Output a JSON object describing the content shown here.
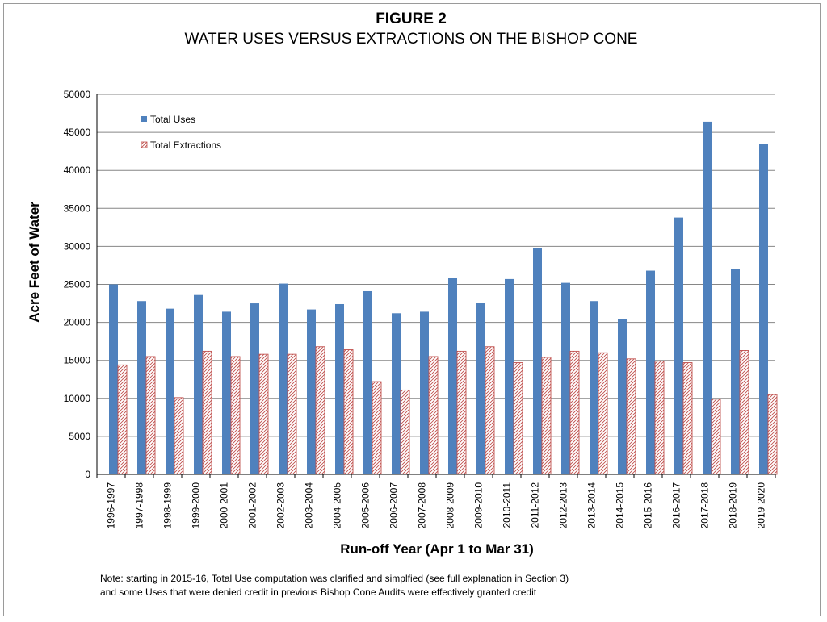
{
  "figure": {
    "heading": "FIGURE 2",
    "subheading": "WATER USES VERSUS EXTRACTIONS ON THE BISHOP CONE",
    "note_line1": "Note: starting in 2015-16,  Total Use computation was clarified and simplfied (see full explanation in Section 3)",
    "note_line2": "and some Uses that were  denied credit in previous Bishop Cone Audits were effectively granted credit"
  },
  "colors": {
    "uses": "#4f81bd",
    "extractions_stroke": "#c0504d",
    "extractions_hatch": "#c0504d",
    "grid": "#868686",
    "axis": "#000000"
  },
  "chart_data": {
    "type": "bar",
    "xlabel": "Run-off Year (Apr 1 to Mar 31)",
    "ylabel": "Acre Feet of Water",
    "ylim": [
      0,
      50000
    ],
    "yticks": [
      0,
      5000,
      10000,
      15000,
      20000,
      25000,
      30000,
      35000,
      40000,
      45000,
      50000
    ],
    "grid": true,
    "legend_position": "top-left",
    "categories": [
      "1996-1997",
      "1997-1998",
      "1998-1999",
      "1999-2000",
      "2000-2001",
      "2001-2002",
      "2002-2003",
      "2003-2004",
      "2004-2005",
      "2005-2006",
      "2006-2007",
      "2007-2008",
      "2008-2009",
      "2009-2010",
      "2010-2011",
      "2011-2012",
      "2012-2013",
      "2013-2014",
      "2014-2015",
      "2015-2016",
      "2016-2017",
      "2017-2018",
      "2018-2019",
      "2019-2020"
    ],
    "series": [
      {
        "name": "Total Uses",
        "values": [
          25000,
          22800,
          21800,
          23600,
          21400,
          22500,
          25100,
          21700,
          22400,
          24100,
          21200,
          21400,
          25800,
          22600,
          25700,
          29800,
          25200,
          22800,
          20400,
          26800,
          33800,
          46400,
          27000,
          43500
        ]
      },
      {
        "name": "Total Extractions",
        "values": [
          14400,
          15500,
          10100,
          16200,
          15500,
          15800,
          15800,
          16800,
          16400,
          12200,
          11100,
          15500,
          16200,
          16800,
          14700,
          15400,
          16200,
          16000,
          15200,
          14900,
          14700,
          9900,
          16300,
          10500
        ]
      }
    ]
  }
}
